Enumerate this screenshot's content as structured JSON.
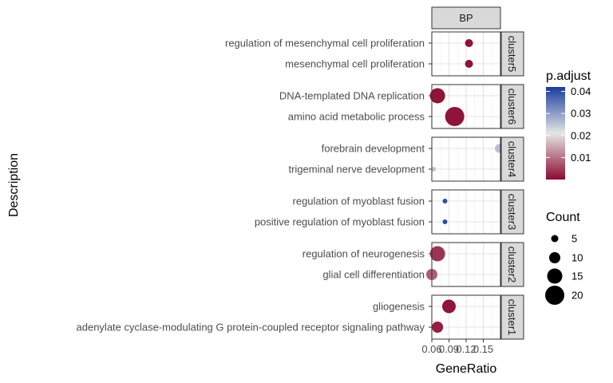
{
  "chart_data": {
    "type": "scatter",
    "facet_column": "BP",
    "xlabel": "GeneRatio",
    "ylabel": "Description",
    "xlim": [
      0.06,
      0.18
    ],
    "x_ticks": [
      0.06,
      0.09,
      0.12,
      0.15
    ],
    "x_tick_labels": [
      "0.06",
      "0.09",
      "0.12",
      "0.15"
    ],
    "color_legend": {
      "title": "p.adjust",
      "ticks": [
        0.04,
        0.03,
        0.02,
        0.01
      ],
      "tick_labels": [
        "0.04",
        "0.03",
        "0.02",
        "0.01"
      ],
      "range": [
        0.0,
        0.042
      ],
      "colors": {
        "low": "#8B0A2E",
        "mid": "#E6E6E6",
        "high": "#1A3C9C"
      }
    },
    "size_legend": {
      "title": "Count",
      "values": [
        5,
        10,
        15,
        20
      ],
      "labels": [
        "5",
        "10",
        "15",
        "20"
      ]
    },
    "panels": [
      {
        "cluster": "cluster5",
        "points": [
          {
            "description": "regulation of mesenchymal cell proliferation",
            "gene_ratio": 0.125,
            "count": 6,
            "p_adjust": 0.001
          },
          {
            "description": "mesenchymal cell proliferation",
            "gene_ratio": 0.125,
            "count": 6,
            "p_adjust": 0.001
          }
        ]
      },
      {
        "cluster": "cluster6",
        "points": [
          {
            "description": "DNA-templated DNA replication",
            "gene_ratio": 0.07,
            "count": 15,
            "p_adjust": 0.001
          },
          {
            "description": "amino acid metabolic process",
            "gene_ratio": 0.1,
            "count": 20,
            "p_adjust": 0.001
          }
        ]
      },
      {
        "cluster": "cluster4",
        "points": [
          {
            "description": "forebrain development",
            "gene_ratio": 0.178,
            "count": 7,
            "p_adjust": 0.026
          },
          {
            "description": "trigeminal nerve development",
            "gene_ratio": 0.063,
            "count": 2,
            "p_adjust": 0.025
          }
        ]
      },
      {
        "cluster": "cluster3",
        "points": [
          {
            "description": "regulation of myoblast fusion",
            "gene_ratio": 0.083,
            "count": 2,
            "p_adjust": 0.04
          },
          {
            "description": "positive regulation of myoblast fusion",
            "gene_ratio": 0.083,
            "count": 2,
            "p_adjust": 0.04
          }
        ]
      },
      {
        "cluster": "cluster2",
        "points": [
          {
            "description": "regulation of neurogenesis",
            "gene_ratio": 0.07,
            "count": 15,
            "p_adjust": 0.004
          },
          {
            "description": "glial cell differentiation",
            "gene_ratio": 0.06,
            "count": 10,
            "p_adjust": 0.008
          }
        ]
      },
      {
        "cluster": "cluster1",
        "points": [
          {
            "description": "gliogenesis",
            "gene_ratio": 0.09,
            "count": 13,
            "p_adjust": 0.001
          },
          {
            "description": "adenylate cyclase-modulating G protein-coupled receptor signaling pathway",
            "gene_ratio": 0.07,
            "count": 10,
            "p_adjust": 0.002
          }
        ]
      }
    ]
  }
}
